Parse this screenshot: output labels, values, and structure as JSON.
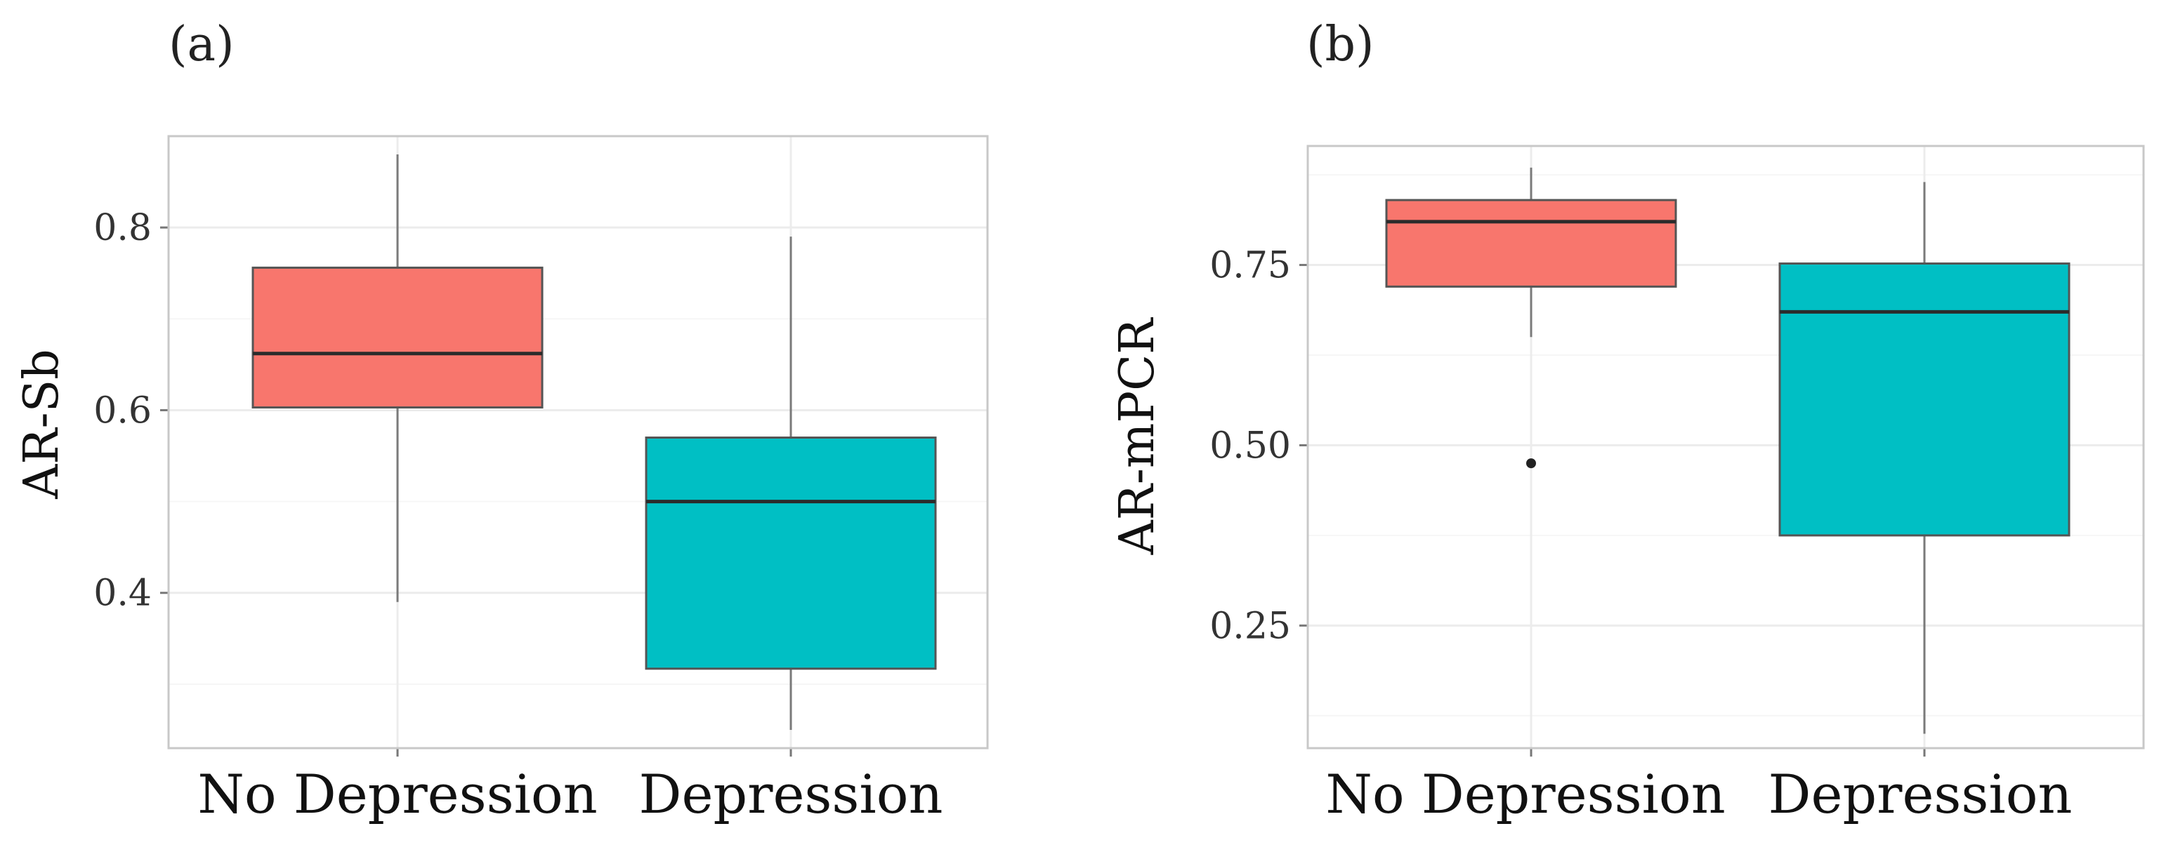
{
  "chart_data": [
    {
      "type": "box",
      "panel_label": "(a)",
      "ylabel": "AR-Sb",
      "xlabel": "",
      "ylim": [
        0.23,
        0.9
      ],
      "yticks": [
        0.4,
        0.6,
        0.8
      ],
      "ytick_labels": [
        "0.4",
        "0.6",
        "0.8"
      ],
      "categories": [
        "No Depression",
        "Depression"
      ],
      "colors": [
        "#F8766D",
        "#00BFC4"
      ],
      "boxes": [
        {
          "category": "No Depression",
          "whisker_low": 0.39,
          "q1": 0.603,
          "median": 0.662,
          "q3": 0.756,
          "whisker_high": 0.88,
          "outliers": []
        },
        {
          "category": "Depression",
          "whisker_low": 0.25,
          "q1": 0.317,
          "median": 0.5,
          "q3": 0.57,
          "whisker_high": 0.79,
          "outliers": []
        }
      ]
    },
    {
      "type": "box",
      "panel_label": "(b)",
      "ylabel": "AR-mPCR",
      "xlabel": "",
      "ylim": [
        0.08,
        0.915
      ],
      "yticks": [
        0.25,
        0.5,
        0.75
      ],
      "ytick_labels": [
        "0.25",
        "0.50",
        "0.75"
      ],
      "categories": [
        "No Depression",
        "Depression"
      ],
      "colors": [
        "#F8766D",
        "#00BFC4"
      ],
      "boxes": [
        {
          "category": "No Depression",
          "whisker_low": 0.65,
          "q1": 0.72,
          "median": 0.81,
          "q3": 0.84,
          "whisker_high": 0.885,
          "outliers": [
            0.475
          ]
        },
        {
          "category": "Depression",
          "whisker_low": 0.1,
          "q1": 0.375,
          "median": 0.685,
          "q3": 0.752,
          "whisker_high": 0.865,
          "outliers": []
        }
      ]
    }
  ]
}
